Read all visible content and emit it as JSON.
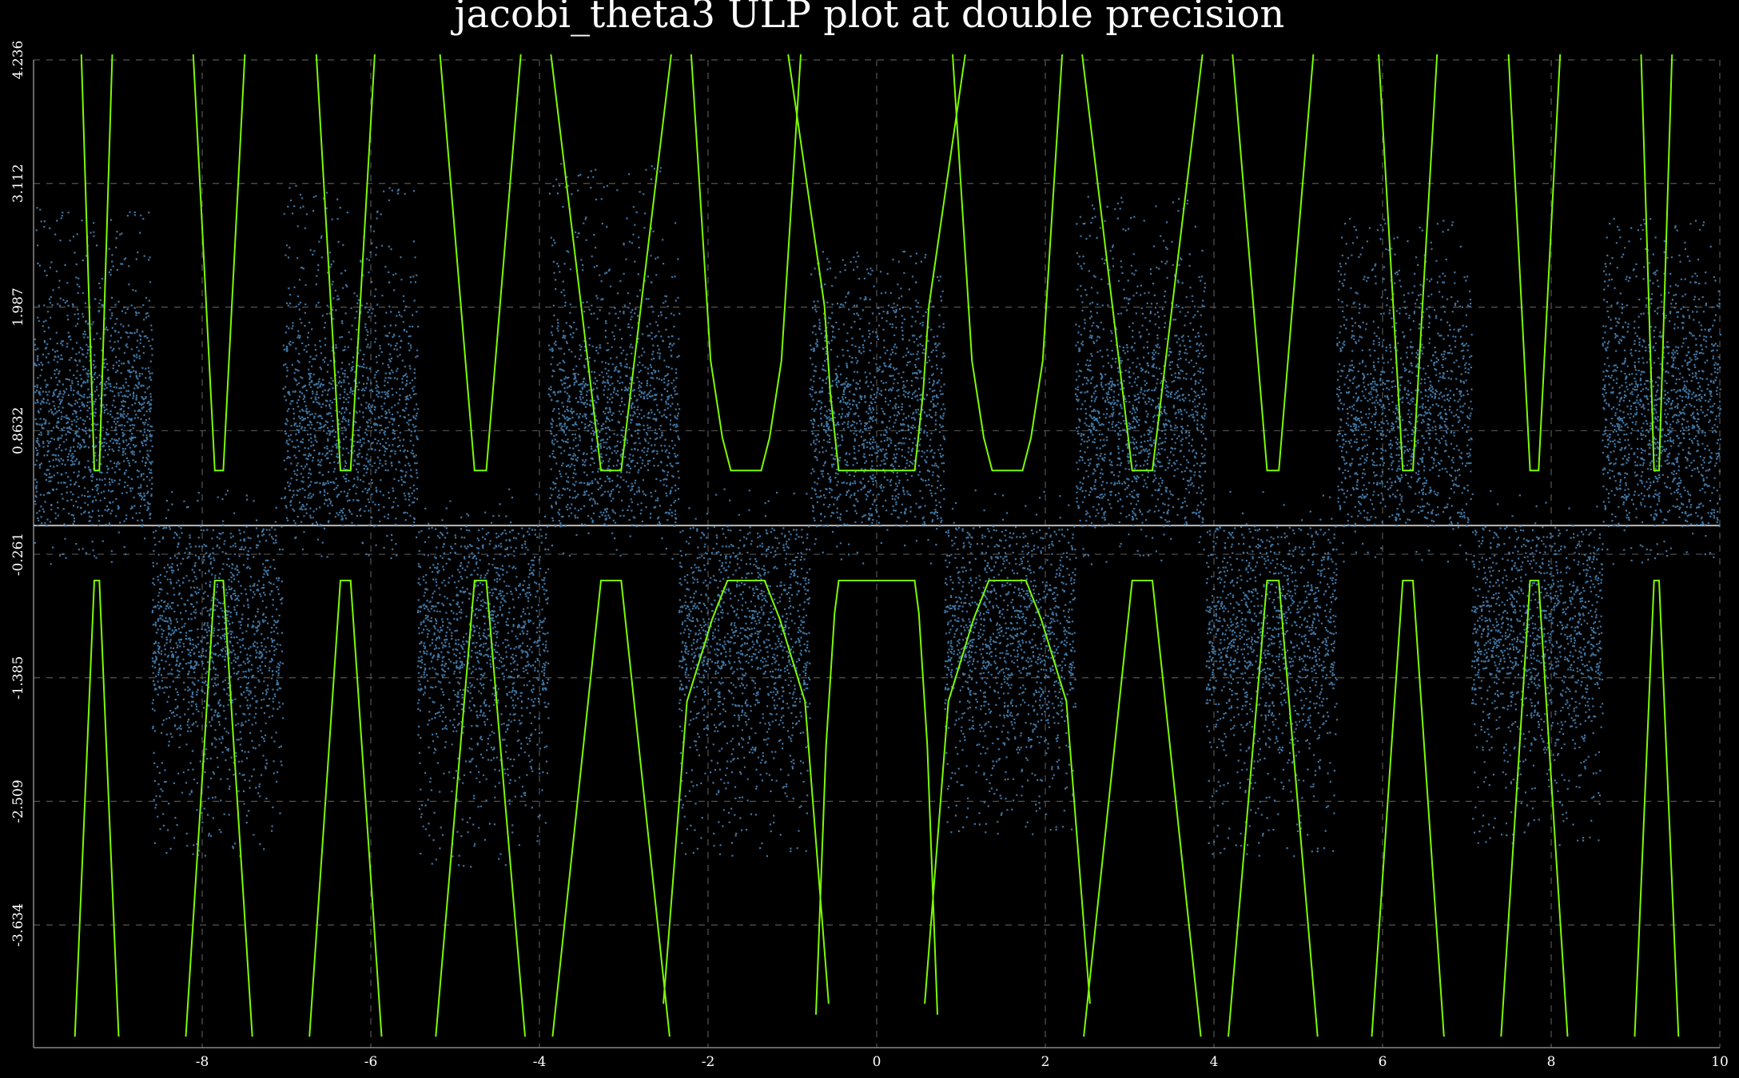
{
  "chart_data": {
    "type": "scatter",
    "title": "jacobi_theta3 ULP plot at double precision",
    "xlim": [
      -10,
      10
    ],
    "ylim": [
      -4.75,
      4.236
    ],
    "x_ticks": [
      -8,
      -6,
      -4,
      -2,
      0,
      2,
      4,
      6,
      8,
      10
    ],
    "x_tick_labels": [
      "-8",
      "-6",
      "-4",
      "-2",
      "0",
      "2",
      "4",
      "6",
      "8",
      "10"
    ],
    "y_ticks": [
      4.236,
      3.112,
      1.987,
      0.8632,
      -0.261,
      -1.385,
      -2.509,
      -3.634
    ],
    "y_tick_labels": [
      "4.236",
      "3.112",
      "1.987",
      "0.8632",
      "-0.261",
      "-1.385",
      "-2.509",
      "-3.634"
    ],
    "grid": true,
    "zero_line": 0,
    "series": [
      {
        "kind": "scatter",
        "color": "#4682b4",
        "description_clusters": [
          {
            "x": [
              -10.0,
              -8.6
            ],
            "y": [
              0.0,
              2.9
            ],
            "sign": "positive"
          },
          {
            "x": [
              -8.6,
              -7.05
            ],
            "y": [
              -3.0,
              0.0
            ],
            "sign": "negative"
          },
          {
            "x": [
              -7.05,
              -5.45
            ],
            "y": [
              0.0,
              3.1
            ],
            "sign": "positive"
          },
          {
            "x": [
              -5.45,
              -3.9
            ],
            "y": [
              -3.1,
              0.0
            ],
            "sign": "negative"
          },
          {
            "x": [
              -3.9,
              -2.35
            ],
            "y": [
              0.0,
              3.3
            ],
            "sign": "positive"
          },
          {
            "x": [
              -2.35,
              -0.8
            ],
            "y": [
              -3.0,
              0.0
            ],
            "sign": "negative"
          },
          {
            "x": [
              -0.8,
              0.8
            ],
            "y": [
              0.0,
              2.5
            ],
            "sign": "positive"
          },
          {
            "x": [
              0.8,
              2.35
            ],
            "y": [
              -2.8,
              0.0
            ],
            "sign": "negative"
          },
          {
            "x": [
              2.35,
              3.9
            ],
            "y": [
              0.0,
              3.0
            ],
            "sign": "positive"
          },
          {
            "x": [
              3.9,
              5.45
            ],
            "y": [
              -3.0,
              0.0
            ],
            "sign": "negative"
          },
          {
            "x": [
              5.45,
              7.05
            ],
            "y": [
              0.0,
              2.8
            ],
            "sign": "positive"
          },
          {
            "x": [
              7.05,
              8.6
            ],
            "y": [
              -2.9,
              0.0
            ],
            "sign": "negative"
          },
          {
            "x": [
              8.6,
              10.0
            ],
            "y": [
              0.0,
              2.8
            ],
            "sign": "positive"
          }
        ]
      },
      {
        "kind": "line",
        "color": "#7cfc00",
        "upper_envelope": {
          "min_y": 0.5,
          "max_y": 4.236,
          "dips": [
            {
              "center": -9.25,
              "halfwidth_bottom": 0.03,
              "slope": 0.15
            },
            {
              "center": -7.8,
              "halfwidth_bottom": 0.05,
              "slope": 0.25
            },
            {
              "center": -6.3,
              "halfwidth_bottom": 0.06,
              "slope": 0.28
            },
            {
              "center": -4.7,
              "halfwidth_bottom": 0.07,
              "slope": 0.4
            },
            {
              "center": -3.15,
              "halfwidth_bottom": 0.12,
              "slope": 0.58
            },
            {
              "center": -1.55,
              "halfwidth_bottom": 0.2,
              "slope": 0.9
            },
            {
              "center": 0.0,
              "halfwidth_bottom": 0.5,
              "slope": 0.95
            },
            {
              "center": 1.55,
              "halfwidth_bottom": 0.2,
              "slope": 0.9
            },
            {
              "center": 3.15,
              "halfwidth_bottom": 0.12,
              "slope": 0.58
            },
            {
              "center": 4.7,
              "halfwidth_bottom": 0.07,
              "slope": 0.4
            },
            {
              "center": 6.3,
              "halfwidth_bottom": 0.06,
              "slope": 0.28
            },
            {
              "center": 7.8,
              "halfwidth_bottom": 0.05,
              "slope": 0.25
            },
            {
              "center": 9.25,
              "halfwidth_bottom": 0.03,
              "slope": 0.15
            }
          ]
        },
        "lower_envelope": {
          "max_y": -0.5,
          "min_y": -4.75,
          "peaks": [
            {
              "center": -9.25,
              "halfwidth_top": 0.03,
              "slope": 0.2
            },
            {
              "center": -7.8,
              "halfwidth_top": 0.05,
              "slope": 0.3
            },
            {
              "center": -6.3,
              "halfwidth_top": 0.06,
              "slope": 0.32
            },
            {
              "center": -4.7,
              "halfwidth_top": 0.07,
              "slope": 0.4
            },
            {
              "center": -3.15,
              "halfwidth_top": 0.12,
              "slope": 0.5
            },
            {
              "center": -1.55,
              "halfwidth_top": 0.2,
              "slope": 0.65
            },
            {
              "center": 0.0,
              "halfwidth_top": 0.5,
              "slope": 0.75
            },
            {
              "center": 1.55,
              "halfwidth_top": 0.2,
              "slope": 0.65
            },
            {
              "center": 3.15,
              "halfwidth_top": 0.12,
              "slope": 0.5
            },
            {
              "center": 4.7,
              "halfwidth_top": 0.07,
              "slope": 0.4
            },
            {
              "center": 6.3,
              "halfwidth_top": 0.06,
              "slope": 0.32
            },
            {
              "center": 7.8,
              "halfwidth_top": 0.05,
              "slope": 0.3
            },
            {
              "center": 9.25,
              "halfwidth_top": 0.03,
              "slope": 0.2
            }
          ]
        }
      }
    ]
  }
}
